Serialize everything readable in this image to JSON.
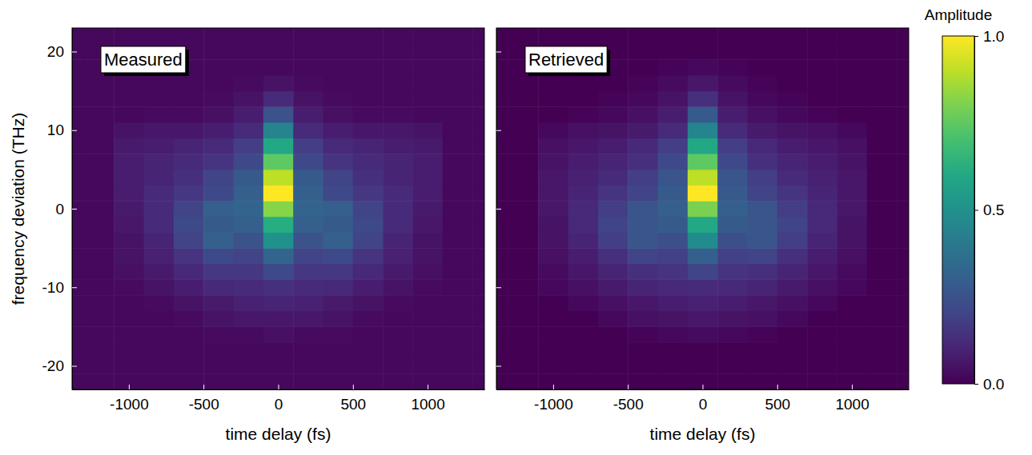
{
  "chart_data": [
    {
      "type": "heatmap",
      "title": "Measured",
      "xlabel": "time delay (fs)",
      "ylabel": "frequency deviation (THz)",
      "xlim": [
        -1380,
        1380
      ],
      "ylim": [
        -23,
        23
      ],
      "xticks": [
        -1000,
        -500,
        0,
        500,
        1000
      ],
      "yticks": [
        -20,
        -10,
        0,
        10,
        20
      ],
      "x": [
        -1400,
        -1200,
        -1000,
        -800,
        -600,
        -400,
        -200,
        0,
        200,
        400,
        600,
        800,
        1000,
        1200,
        1400
      ],
      "y": [
        -22,
        -20,
        -18,
        -16,
        -14,
        -12,
        -10,
        -8,
        -6,
        -4,
        -2,
        0,
        2,
        4,
        6,
        8,
        10,
        12,
        14,
        16,
        18,
        20,
        22
      ],
      "z": [
        [
          0.02,
          0.02,
          0.02,
          0.02,
          0.02,
          0.02,
          0.02,
          0.02,
          0.02,
          0.02,
          0.02,
          0.02,
          0.02,
          0.02,
          0.02
        ],
        [
          0.02,
          0.02,
          0.02,
          0.02,
          0.02,
          0.02,
          0.02,
          0.02,
          0.02,
          0.02,
          0.02,
          0.02,
          0.02,
          0.02,
          0.02
        ],
        [
          0.02,
          0.02,
          0.02,
          0.02,
          0.02,
          0.02,
          0.02,
          0.02,
          0.02,
          0.02,
          0.02,
          0.02,
          0.02,
          0.02,
          0.02
        ],
        [
          0.02,
          0.02,
          0.02,
          0.02,
          0.02,
          0.03,
          0.03,
          0.04,
          0.03,
          0.03,
          0.02,
          0.02,
          0.02,
          0.02,
          0.02
        ],
        [
          0.02,
          0.02,
          0.02,
          0.02,
          0.03,
          0.05,
          0.06,
          0.06,
          0.06,
          0.05,
          0.03,
          0.02,
          0.02,
          0.02,
          0.02
        ],
        [
          0.02,
          0.02,
          0.02,
          0.03,
          0.05,
          0.07,
          0.09,
          0.1,
          0.09,
          0.07,
          0.05,
          0.03,
          0.02,
          0.02,
          0.02
        ],
        [
          0.02,
          0.02,
          0.03,
          0.05,
          0.08,
          0.11,
          0.12,
          0.14,
          0.12,
          0.11,
          0.08,
          0.05,
          0.03,
          0.02,
          0.02
        ],
        [
          0.02,
          0.02,
          0.04,
          0.07,
          0.11,
          0.16,
          0.16,
          0.22,
          0.16,
          0.16,
          0.11,
          0.07,
          0.04,
          0.02,
          0.02
        ],
        [
          0.02,
          0.02,
          0.05,
          0.09,
          0.15,
          0.22,
          0.2,
          0.32,
          0.2,
          0.22,
          0.15,
          0.09,
          0.05,
          0.02,
          0.02
        ],
        [
          0.02,
          0.02,
          0.05,
          0.1,
          0.2,
          0.3,
          0.25,
          0.5,
          0.25,
          0.3,
          0.2,
          0.1,
          0.05,
          0.02,
          0.02
        ],
        [
          0.02,
          0.02,
          0.06,
          0.12,
          0.22,
          0.28,
          0.3,
          0.62,
          0.3,
          0.28,
          0.22,
          0.12,
          0.06,
          0.02,
          0.02
        ],
        [
          0.02,
          0.02,
          0.07,
          0.12,
          0.2,
          0.3,
          0.32,
          0.82,
          0.32,
          0.3,
          0.2,
          0.12,
          0.07,
          0.02,
          0.02
        ],
        [
          0.02,
          0.02,
          0.08,
          0.12,
          0.16,
          0.22,
          0.3,
          1.0,
          0.3,
          0.22,
          0.16,
          0.12,
          0.08,
          0.02,
          0.02
        ],
        [
          0.02,
          0.02,
          0.08,
          0.1,
          0.14,
          0.2,
          0.28,
          0.9,
          0.28,
          0.2,
          0.14,
          0.1,
          0.08,
          0.02,
          0.02
        ],
        [
          0.02,
          0.02,
          0.08,
          0.1,
          0.12,
          0.15,
          0.22,
          0.75,
          0.22,
          0.15,
          0.12,
          0.1,
          0.08,
          0.02,
          0.02
        ],
        [
          0.02,
          0.02,
          0.07,
          0.08,
          0.1,
          0.12,
          0.18,
          0.6,
          0.18,
          0.12,
          0.1,
          0.08,
          0.07,
          0.02,
          0.02
        ],
        [
          0.02,
          0.02,
          0.05,
          0.06,
          0.06,
          0.08,
          0.12,
          0.45,
          0.12,
          0.08,
          0.06,
          0.06,
          0.05,
          0.02,
          0.02
        ],
        [
          0.02,
          0.02,
          0.02,
          0.03,
          0.03,
          0.04,
          0.08,
          0.25,
          0.08,
          0.04,
          0.03,
          0.03,
          0.02,
          0.02,
          0.02
        ],
        [
          0.02,
          0.02,
          0.02,
          0.02,
          0.02,
          0.03,
          0.05,
          0.12,
          0.05,
          0.03,
          0.02,
          0.02,
          0.02,
          0.02,
          0.02
        ],
        [
          0.02,
          0.02,
          0.02,
          0.02,
          0.02,
          0.02,
          0.03,
          0.05,
          0.03,
          0.02,
          0.02,
          0.02,
          0.02,
          0.02,
          0.02
        ],
        [
          0.02,
          0.02,
          0.02,
          0.02,
          0.02,
          0.02,
          0.02,
          0.02,
          0.02,
          0.02,
          0.02,
          0.02,
          0.02,
          0.02,
          0.02
        ],
        [
          0.02,
          0.02,
          0.02,
          0.02,
          0.02,
          0.02,
          0.02,
          0.02,
          0.02,
          0.02,
          0.02,
          0.02,
          0.02,
          0.02,
          0.02
        ],
        [
          0.02,
          0.02,
          0.02,
          0.02,
          0.02,
          0.02,
          0.02,
          0.02,
          0.02,
          0.02,
          0.02,
          0.02,
          0.02,
          0.02,
          0.02
        ]
      ]
    },
    {
      "type": "heatmap",
      "title": "Retrieved",
      "xlabel": "time delay (fs)",
      "tick_labels": "x",
      "xlim": [
        -1380,
        1380
      ],
      "ylim": [
        -23,
        23
      ],
      "xticks": [
        -1000,
        -500,
        0,
        500,
        1000
      ],
      "yticks": [
        -20,
        -10,
        0,
        10,
        20
      ],
      "x": [
        -1400,
        -1200,
        -1000,
        -800,
        -600,
        -400,
        -200,
        0,
        200,
        400,
        600,
        800,
        1000,
        1200,
        1400
      ],
      "y": [
        -22,
        -20,
        -18,
        -16,
        -14,
        -12,
        -10,
        -8,
        -6,
        -4,
        -2,
        0,
        2,
        4,
        6,
        8,
        10,
        12,
        14,
        16,
        18,
        20,
        22
      ],
      "z": [
        [
          0,
          0,
          0,
          0,
          0,
          0,
          0,
          0,
          0,
          0,
          0,
          0,
          0,
          0,
          0
        ],
        [
          0,
          0,
          0,
          0,
          0,
          0,
          0,
          0,
          0,
          0,
          0,
          0,
          0,
          0,
          0
        ],
        [
          0,
          0,
          0,
          0,
          0,
          0,
          0,
          0,
          0,
          0,
          0,
          0,
          0,
          0,
          0
        ],
        [
          0,
          0,
          0,
          0,
          0,
          0.01,
          0.02,
          0.03,
          0.02,
          0.01,
          0,
          0,
          0,
          0,
          0
        ],
        [
          0,
          0,
          0,
          0,
          0.02,
          0.04,
          0.05,
          0.06,
          0.05,
          0.04,
          0.02,
          0,
          0,
          0,
          0
        ],
        [
          0,
          0,
          0,
          0.02,
          0.04,
          0.06,
          0.08,
          0.09,
          0.08,
          0.06,
          0.04,
          0.02,
          0,
          0,
          0
        ],
        [
          0,
          0,
          0.02,
          0.04,
          0.07,
          0.1,
          0.11,
          0.12,
          0.11,
          0.1,
          0.07,
          0.04,
          0.02,
          0,
          0
        ],
        [
          0,
          0,
          0.03,
          0.06,
          0.1,
          0.14,
          0.15,
          0.2,
          0.15,
          0.14,
          0.1,
          0.06,
          0.03,
          0,
          0
        ],
        [
          0,
          0,
          0.04,
          0.08,
          0.14,
          0.2,
          0.19,
          0.3,
          0.19,
          0.2,
          0.14,
          0.08,
          0.04,
          0,
          0
        ],
        [
          0,
          0,
          0.05,
          0.1,
          0.18,
          0.26,
          0.24,
          0.48,
          0.24,
          0.26,
          0.18,
          0.1,
          0.05,
          0,
          0
        ],
        [
          0,
          0,
          0.05,
          0.11,
          0.2,
          0.26,
          0.28,
          0.6,
          0.28,
          0.26,
          0.2,
          0.11,
          0.05,
          0,
          0
        ],
        [
          0,
          0,
          0.06,
          0.11,
          0.18,
          0.26,
          0.3,
          0.8,
          0.3,
          0.26,
          0.18,
          0.11,
          0.06,
          0,
          0
        ],
        [
          0,
          0,
          0.06,
          0.1,
          0.15,
          0.2,
          0.28,
          1.0,
          0.28,
          0.2,
          0.15,
          0.1,
          0.06,
          0,
          0
        ],
        [
          0,
          0,
          0.06,
          0.09,
          0.12,
          0.18,
          0.26,
          0.9,
          0.26,
          0.18,
          0.12,
          0.09,
          0.06,
          0,
          0
        ],
        [
          0,
          0,
          0.05,
          0.08,
          0.1,
          0.14,
          0.22,
          0.75,
          0.22,
          0.14,
          0.1,
          0.08,
          0.05,
          0,
          0
        ],
        [
          0,
          0,
          0.04,
          0.06,
          0.08,
          0.11,
          0.18,
          0.6,
          0.18,
          0.11,
          0.08,
          0.06,
          0.04,
          0,
          0
        ],
        [
          0,
          0,
          0.02,
          0.04,
          0.05,
          0.07,
          0.12,
          0.45,
          0.12,
          0.07,
          0.05,
          0.04,
          0.02,
          0,
          0
        ],
        [
          0,
          0,
          0,
          0.01,
          0.02,
          0.04,
          0.08,
          0.28,
          0.08,
          0.04,
          0.02,
          0.01,
          0,
          0,
          0
        ],
        [
          0,
          0,
          0,
          0,
          0.01,
          0.02,
          0.05,
          0.14,
          0.05,
          0.02,
          0.01,
          0,
          0,
          0,
          0
        ],
        [
          0,
          0,
          0,
          0,
          0,
          0.01,
          0.03,
          0.06,
          0.03,
          0.01,
          0,
          0,
          0,
          0,
          0
        ],
        [
          0,
          0,
          0,
          0,
          0,
          0,
          0.01,
          0.02,
          0.01,
          0,
          0,
          0,
          0,
          0,
          0
        ],
        [
          0,
          0,
          0,
          0,
          0,
          0,
          0,
          0,
          0,
          0,
          0,
          0,
          0,
          0,
          0
        ],
        [
          0,
          0,
          0,
          0,
          0,
          0,
          0,
          0,
          0,
          0,
          0,
          0,
          0,
          0,
          0
        ]
      ],
      "colorbar": {
        "label": "Amplitude",
        "range": [
          0,
          1
        ],
        "ticks": [
          {
            "value": 0,
            "label": "0.0"
          },
          {
            "value": 0.5,
            "label": "0.5"
          },
          {
            "value": 1,
            "label": "1.0"
          }
        ]
      }
    }
  ]
}
